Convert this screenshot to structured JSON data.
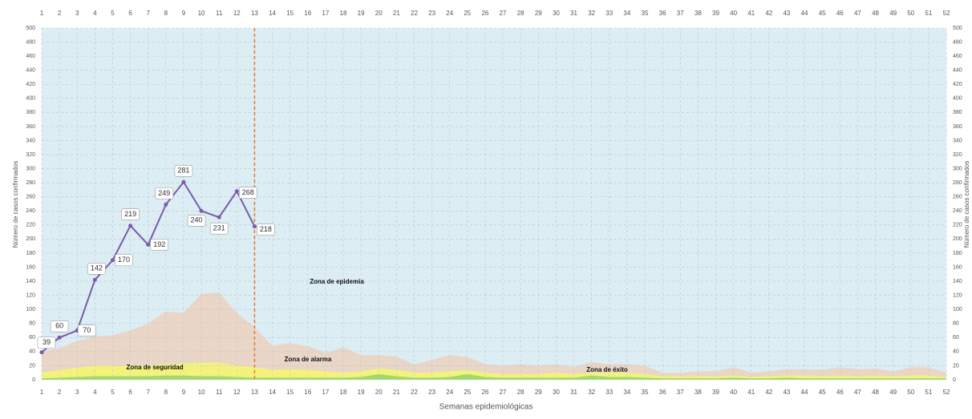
{
  "chart_data": {
    "type": "epidemic-channel",
    "x": [
      1,
      2,
      3,
      4,
      5,
      6,
      7,
      8,
      9,
      10,
      11,
      12,
      13,
      14,
      15,
      16,
      17,
      18,
      19,
      20,
      21,
      22,
      23,
      24,
      25,
      26,
      27,
      28,
      29,
      30,
      31,
      32,
      33,
      34,
      35,
      36,
      37,
      38,
      39,
      40,
      41,
      42,
      43,
      44,
      45,
      46,
      47,
      48,
      49,
      50,
      51,
      52
    ],
    "xlim": [
      1,
      52
    ],
    "xticks": [
      1,
      2,
      3,
      4,
      5,
      6,
      7,
      8,
      9,
      10,
      11,
      12,
      13,
      14,
      15,
      16,
      17,
      18,
      19,
      20,
      21,
      22,
      23,
      24,
      25,
      26,
      27,
      28,
      29,
      30,
      31,
      32,
      33,
      34,
      35,
      36,
      37,
      38,
      39,
      40,
      41,
      42,
      43,
      44,
      45,
      46,
      47,
      48,
      49,
      50,
      51,
      52
    ],
    "ylim": [
      0,
      500
    ],
    "yticks": [
      0,
      20,
      40,
      60,
      80,
      100,
      120,
      140,
      160,
      180,
      200,
      220,
      240,
      260,
      280,
      300,
      320,
      340,
      360,
      380,
      400,
      420,
      440,
      460,
      480,
      500
    ],
    "xlabel": "Semanas epidemiológicas",
    "ylabel": "Número de casos confirmados",
    "grid": true,
    "background_color": "#dcedf3",
    "current_week": 13,
    "current_week_color": "#e8772e",
    "zones": [
      {
        "name": "Zona de alarma",
        "color": "#e9d6c6",
        "values": [
          40,
          45,
          55,
          62,
          63,
          70,
          80,
          97,
          95,
          122,
          124,
          95,
          75,
          48,
          52,
          48,
          38,
          46,
          35,
          35,
          33,
          22,
          28,
          35,
          32,
          22,
          20,
          22,
          20,
          22,
          18,
          25,
          22,
          22,
          20,
          10,
          10,
          12,
          12,
          18,
          10,
          12,
          15,
          15,
          14,
          18,
          15,
          16,
          12,
          18,
          18,
          10
        ]
      },
      {
        "name": "Zona de seguridad",
        "color": "#f3f37c",
        "values": [
          10,
          14,
          17,
          20,
          20,
          20,
          20,
          22,
          23,
          24,
          24,
          20,
          18,
          14,
          15,
          14,
          12,
          10,
          12,
          16,
          14,
          10,
          10,
          12,
          14,
          10,
          8,
          8,
          8,
          10,
          8,
          10,
          10,
          10,
          8,
          5,
          5,
          5,
          5,
          6,
          4,
          5,
          6,
          6,
          5,
          6,
          5,
          6,
          5,
          6,
          6,
          4
        ]
      },
      {
        "name": "Zona de éxito",
        "color": "#a3d86c",
        "values": [
          2,
          3,
          4,
          5,
          5,
          5,
          5,
          6,
          6,
          5,
          5,
          4,
          3,
          3,
          3,
          3,
          3,
          3,
          4,
          8,
          5,
          3,
          3,
          4,
          8,
          4,
          3,
          3,
          3,
          3,
          3,
          6,
          4,
          4,
          3,
          2,
          2,
          2,
          2,
          3,
          2,
          2,
          3,
          2,
          2,
          2,
          2,
          2,
          2,
          2,
          2,
          2
        ]
      }
    ],
    "series": [
      {
        "color": "#7a5ba8",
        "values": [
          39,
          60,
          70,
          142,
          170,
          219,
          192,
          249,
          281,
          240,
          231,
          268,
          218,
          null,
          null,
          null,
          null,
          null,
          null,
          null,
          null,
          null,
          null,
          null,
          null,
          null,
          null,
          null,
          null,
          null,
          null,
          null,
          null,
          null,
          null,
          null,
          null,
          null,
          null,
          null,
          null,
          null,
          null,
          null,
          null,
          null,
          null,
          null,
          null,
          null,
          null,
          null
        ]
      }
    ],
    "annotations": [
      "Zona de epidemia",
      "Zona de alarma",
      "Zona de seguridad",
      "Zona de éxito"
    ]
  }
}
